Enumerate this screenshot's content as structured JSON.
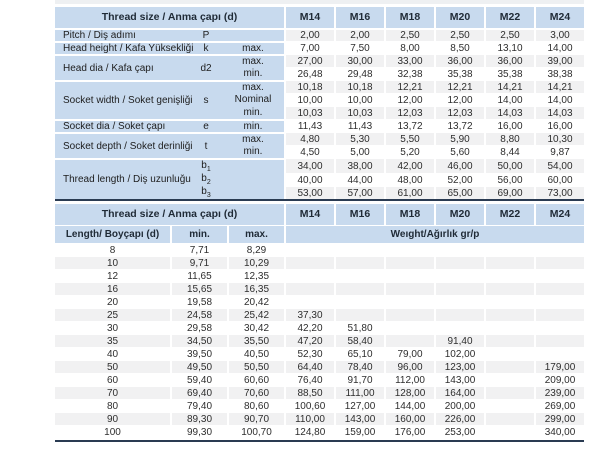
{
  "colors": {
    "header_blue": "#c8daee",
    "row_alt_gray": "#f1f1f2",
    "row_white": "#ffffff",
    "rule_dark": "#2a3b52"
  },
  "sizes_header": [
    "M14",
    "M16",
    "M18",
    "M20",
    "M22",
    "M24"
  ],
  "spec_table": {
    "title": "Thread size / Anma çapı (d)",
    "groups": [
      {
        "label": "Pitch / Diş adımı",
        "symbol": "P",
        "rows": [
          {
            "sub": "",
            "values": [
              "2,00",
              "2,00",
              "2,50",
              "2,50",
              "2,50",
              "3,00"
            ]
          }
        ]
      },
      {
        "label": "Head height / Kafa Yüksekliği",
        "symbol": "k",
        "rows": [
          {
            "sub": "max.",
            "values": [
              "7,00",
              "7,50",
              "8,00",
              "8,50",
              "13,10",
              "14,00"
            ]
          }
        ]
      },
      {
        "label": "Head dia / Kafa çapı",
        "symbol": "d2",
        "rows": [
          {
            "sub": "max.",
            "values": [
              "27,00",
              "30,00",
              "33,00",
              "36,00",
              "36,00",
              "39,00"
            ]
          },
          {
            "sub": "min.",
            "values": [
              "26,48",
              "29,48",
              "32,38",
              "35,38",
              "35,38",
              "38,38"
            ]
          }
        ]
      },
      {
        "label": "Socket width / Soket genişliği",
        "symbol": "s",
        "rows": [
          {
            "sub": "max.",
            "values": [
              "10,18",
              "10,18",
              "12,21",
              "12,21",
              "14,21",
              "14,21"
            ]
          },
          {
            "sub": "Nominal",
            "values": [
              "10,00",
              "10,00",
              "12,00",
              "12,00",
              "14,00",
              "14,00"
            ]
          },
          {
            "sub": "min.",
            "values": [
              "10,03",
              "10,03",
              "12,03",
              "12,03",
              "14,03",
              "14,03"
            ]
          }
        ]
      },
      {
        "label": "Socket dia / Soket çapı",
        "symbol": "e",
        "rows": [
          {
            "sub": "min.",
            "values": [
              "11,43",
              "11,43",
              "13,72",
              "13,72",
              "16,00",
              "16,00"
            ]
          }
        ]
      },
      {
        "label": "Socket depth / Soket derinliği",
        "symbol": "t",
        "rows": [
          {
            "sub": "max.",
            "values": [
              "4,80",
              "5,30",
              "5,50",
              "5,90",
              "8,80",
              "10,30"
            ]
          },
          {
            "sub": "min.",
            "values": [
              "4,50",
              "5,00",
              "5,20",
              "5,60",
              "8,44",
              "9,87"
            ]
          }
        ]
      },
      {
        "label": "Thread length / Diş uzunluğu",
        "symbol": "",
        "rows": [
          {
            "sym": "b",
            "sym_sub": "1",
            "sub": "",
            "values": [
              "34,00",
              "38,00",
              "42,00",
              "46,00",
              "50,00",
              "54,00"
            ]
          },
          {
            "sym": "b",
            "sym_sub": "2",
            "sub": "",
            "values": [
              "40,00",
              "44,00",
              "48,00",
              "52,00",
              "56,00",
              "60,00"
            ]
          },
          {
            "sym": "b",
            "sym_sub": "3",
            "sub": "",
            "values": [
              "53,00",
              "57,00",
              "61,00",
              "65,00",
              "69,00",
              "73,00"
            ]
          }
        ]
      }
    ]
  },
  "weight_table": {
    "title": "Thread size / Anma çapı (d)",
    "length_header": "Length/ Boyçapı (d)",
    "min_header": "min.",
    "max_header": "max.",
    "weight_header": "Weıght/Ağırlık gr/p",
    "rows": [
      {
        "length": "8",
        "min": "7,71",
        "max": "8,29",
        "weights": [
          "",
          "",
          "",
          "",
          "",
          ""
        ]
      },
      {
        "length": "10",
        "min": "9,71",
        "max": "10,29",
        "weights": [
          "",
          "",
          "",
          "",
          "",
          ""
        ]
      },
      {
        "length": "12",
        "min": "11,65",
        "max": "12,35",
        "weights": [
          "",
          "",
          "",
          "",
          "",
          ""
        ]
      },
      {
        "length": "16",
        "min": "15,65",
        "max": "16,35",
        "weights": [
          "",
          "",
          "",
          "",
          "",
          ""
        ]
      },
      {
        "length": "20",
        "min": "19,58",
        "max": "20,42",
        "weights": [
          "",
          "",
          "",
          "",
          "",
          ""
        ]
      },
      {
        "length": "25",
        "min": "24,58",
        "max": "25,42",
        "weights": [
          "37,30",
          "",
          "",
          "",
          "",
          ""
        ]
      },
      {
        "length": "30",
        "min": "29,58",
        "max": "30,42",
        "weights": [
          "42,20",
          "51,80",
          "",
          "",
          "",
          ""
        ]
      },
      {
        "length": "35",
        "min": "34,50",
        "max": "35,50",
        "weights": [
          "47,20",
          "58,40",
          "",
          "91,40",
          "",
          ""
        ]
      },
      {
        "length": "40",
        "min": "39,50",
        "max": "40,50",
        "weights": [
          "52,30",
          "65,10",
          "79,00",
          "102,00",
          "",
          ""
        ]
      },
      {
        "length": "50",
        "min": "49,50",
        "max": "50,50",
        "weights": [
          "64,40",
          "78,40",
          "96,00",
          "123,00",
          "",
          "179,00"
        ]
      },
      {
        "length": "60",
        "min": "59,40",
        "max": "60,60",
        "weights": [
          "76,40",
          "91,70",
          "112,00",
          "143,00",
          "",
          "209,00"
        ]
      },
      {
        "length": "70",
        "min": "69,40",
        "max": "70,60",
        "weights": [
          "88,50",
          "111,00",
          "128,00",
          "164,00",
          "",
          "239,00"
        ]
      },
      {
        "length": "80",
        "min": "79,40",
        "max": "80,60",
        "weights": [
          "100,60",
          "127,00",
          "144,00",
          "200,00",
          "",
          "269,00"
        ]
      },
      {
        "length": "90",
        "min": "89,30",
        "max": "90,70",
        "weights": [
          "110,00",
          "143,00",
          "160,00",
          "226,00",
          "",
          "299,00"
        ]
      },
      {
        "length": "100",
        "min": "99,30",
        "max": "100,70",
        "weights": [
          "124,80",
          "159,00",
          "176,00",
          "253,00",
          "",
          "340,00"
        ]
      }
    ]
  }
}
